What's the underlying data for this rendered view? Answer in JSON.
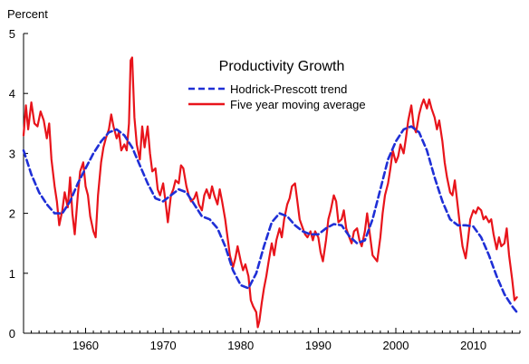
{
  "chart_data": {
    "type": "line",
    "title": "Productivity Growth",
    "ylabel": "Percent",
    "xlabel": "",
    "xlim": [
      1952,
      2016
    ],
    "ylim": [
      0,
      5
    ],
    "x_ticks": [
      1960,
      1970,
      1980,
      1990,
      2000,
      2010
    ],
    "y_ticks": [
      0,
      1,
      2,
      3,
      4,
      5
    ],
    "grid": false,
    "legend_position": "top-center",
    "series": [
      {
        "name": "Hodrick-Prescott trend",
        "color": "#1f2fd6",
        "dash": "dashed",
        "points": [
          [
            1952,
            3.05
          ],
          [
            1953,
            2.65
          ],
          [
            1954,
            2.35
          ],
          [
            1955,
            2.15
          ],
          [
            1956,
            2.0
          ],
          [
            1957,
            2.0
          ],
          [
            1958,
            2.2
          ],
          [
            1959,
            2.5
          ],
          [
            1960,
            2.75
          ],
          [
            1961,
            3.0
          ],
          [
            1962,
            3.2
          ],
          [
            1963,
            3.35
          ],
          [
            1964,
            3.4
          ],
          [
            1965,
            3.3
          ],
          [
            1966,
            3.1
          ],
          [
            1967,
            2.8
          ],
          [
            1968,
            2.5
          ],
          [
            1969,
            2.25
          ],
          [
            1970,
            2.2
          ],
          [
            1971,
            2.3
          ],
          [
            1972,
            2.4
          ],
          [
            1973,
            2.35
          ],
          [
            1974,
            2.15
          ],
          [
            1975,
            1.95
          ],
          [
            1976,
            1.9
          ],
          [
            1977,
            1.75
          ],
          [
            1978,
            1.45
          ],
          [
            1979,
            1.05
          ],
          [
            1980,
            0.8
          ],
          [
            1981,
            0.75
          ],
          [
            1982,
            1.0
          ],
          [
            1983,
            1.45
          ],
          [
            1984,
            1.85
          ],
          [
            1985,
            2.0
          ],
          [
            1986,
            1.95
          ],
          [
            1987,
            1.8
          ],
          [
            1988,
            1.7
          ],
          [
            1989,
            1.65
          ],
          [
            1990,
            1.65
          ],
          [
            1991,
            1.75
          ],
          [
            1992,
            1.82
          ],
          [
            1993,
            1.8
          ],
          [
            1994,
            1.62
          ],
          [
            1995,
            1.5
          ],
          [
            1996,
            1.55
          ],
          [
            1997,
            1.9
          ],
          [
            1998,
            2.4
          ],
          [
            1999,
            2.9
          ],
          [
            2000,
            3.2
          ],
          [
            2001,
            3.4
          ],
          [
            2002,
            3.45
          ],
          [
            2003,
            3.35
          ],
          [
            2004,
            3.05
          ],
          [
            2005,
            2.6
          ],
          [
            2006,
            2.2
          ],
          [
            2007,
            1.9
          ],
          [
            2008,
            1.8
          ],
          [
            2009,
            1.8
          ],
          [
            2010,
            1.78
          ],
          [
            2011,
            1.6
          ],
          [
            2012,
            1.3
          ],
          [
            2013,
            0.95
          ],
          [
            2014,
            0.65
          ],
          [
            2015,
            0.45
          ],
          [
            2015.6,
            0.35
          ]
        ]
      },
      {
        "name": "Five year moving average",
        "color": "#e8141b",
        "dash": "solid",
        "points": [
          [
            1952.0,
            3.3
          ],
          [
            1952.3,
            3.8
          ],
          [
            1952.6,
            3.4
          ],
          [
            1953.0,
            3.85
          ],
          [
            1953.4,
            3.5
          ],
          [
            1953.8,
            3.45
          ],
          [
            1954.2,
            3.7
          ],
          [
            1954.6,
            3.55
          ],
          [
            1955.0,
            3.25
          ],
          [
            1955.3,
            3.5
          ],
          [
            1955.6,
            2.9
          ],
          [
            1956.0,
            2.45
          ],
          [
            1956.3,
            2.2
          ],
          [
            1956.6,
            1.8
          ],
          [
            1957.0,
            2.05
          ],
          [
            1957.3,
            2.35
          ],
          [
            1957.7,
            2.1
          ],
          [
            1958.0,
            2.6
          ],
          [
            1958.3,
            2.0
          ],
          [
            1958.6,
            1.65
          ],
          [
            1959.0,
            2.3
          ],
          [
            1959.3,
            2.7
          ],
          [
            1959.7,
            2.85
          ],
          [
            1960.0,
            2.45
          ],
          [
            1960.3,
            2.3
          ],
          [
            1960.6,
            1.95
          ],
          [
            1961.0,
            1.7
          ],
          [
            1961.3,
            1.6
          ],
          [
            1961.6,
            2.3
          ],
          [
            1962.0,
            2.85
          ],
          [
            1962.3,
            3.1
          ],
          [
            1962.6,
            3.25
          ],
          [
            1963.0,
            3.4
          ],
          [
            1963.3,
            3.65
          ],
          [
            1963.6,
            3.45
          ],
          [
            1964.0,
            3.25
          ],
          [
            1964.3,
            3.35
          ],
          [
            1964.6,
            3.05
          ],
          [
            1965.0,
            3.15
          ],
          [
            1965.3,
            3.05
          ],
          [
            1965.6,
            3.5
          ],
          [
            1965.8,
            4.55
          ],
          [
            1966.0,
            4.6
          ],
          [
            1966.3,
            3.6
          ],
          [
            1966.6,
            3.15
          ],
          [
            1967.0,
            2.9
          ],
          [
            1967.3,
            3.45
          ],
          [
            1967.6,
            3.1
          ],
          [
            1968.0,
            3.45
          ],
          [
            1968.3,
            3.0
          ],
          [
            1968.6,
            2.7
          ],
          [
            1969.0,
            2.75
          ],
          [
            1969.3,
            2.4
          ],
          [
            1969.6,
            2.3
          ],
          [
            1970.0,
            2.5
          ],
          [
            1970.3,
            2.2
          ],
          [
            1970.6,
            1.85
          ],
          [
            1971.0,
            2.3
          ],
          [
            1971.3,
            2.4
          ],
          [
            1971.6,
            2.55
          ],
          [
            1972.0,
            2.5
          ],
          [
            1972.3,
            2.8
          ],
          [
            1972.6,
            2.75
          ],
          [
            1973.0,
            2.45
          ],
          [
            1973.3,
            2.3
          ],
          [
            1973.6,
            2.2
          ],
          [
            1974.0,
            2.25
          ],
          [
            1974.3,
            2.35
          ],
          [
            1974.6,
            2.15
          ],
          [
            1975.0,
            2.05
          ],
          [
            1975.3,
            2.3
          ],
          [
            1975.6,
            2.4
          ],
          [
            1976.0,
            2.25
          ],
          [
            1976.3,
            2.45
          ],
          [
            1976.6,
            2.3
          ],
          [
            1977.0,
            2.15
          ],
          [
            1977.3,
            2.4
          ],
          [
            1977.6,
            2.2
          ],
          [
            1978.0,
            1.9
          ],
          [
            1978.3,
            1.6
          ],
          [
            1978.6,
            1.3
          ],
          [
            1979.0,
            1.1
          ],
          [
            1979.3,
            1.25
          ],
          [
            1979.6,
            1.45
          ],
          [
            1980.0,
            1.2
          ],
          [
            1980.3,
            1.05
          ],
          [
            1980.6,
            1.15
          ],
          [
            1981.0,
            0.95
          ],
          [
            1981.3,
            0.55
          ],
          [
            1981.6,
            0.45
          ],
          [
            1982.0,
            0.35
          ],
          [
            1982.2,
            0.1
          ],
          [
            1982.4,
            0.2
          ],
          [
            1982.7,
            0.5
          ],
          [
            1983.0,
            0.75
          ],
          [
            1983.3,
            0.95
          ],
          [
            1983.6,
            1.2
          ],
          [
            1984.0,
            1.5
          ],
          [
            1984.3,
            1.3
          ],
          [
            1984.6,
            1.55
          ],
          [
            1985.0,
            1.75
          ],
          [
            1985.3,
            1.6
          ],
          [
            1985.6,
            1.9
          ],
          [
            1986.0,
            2.15
          ],
          [
            1986.3,
            2.25
          ],
          [
            1986.6,
            2.45
          ],
          [
            1987.0,
            2.5
          ],
          [
            1987.3,
            2.2
          ],
          [
            1987.6,
            1.9
          ],
          [
            1988.0,
            1.75
          ],
          [
            1988.3,
            1.65
          ],
          [
            1988.6,
            1.6
          ],
          [
            1989.0,
            1.7
          ],
          [
            1989.3,
            1.55
          ],
          [
            1989.6,
            1.7
          ],
          [
            1990.0,
            1.6
          ],
          [
            1990.3,
            1.35
          ],
          [
            1990.6,
            1.2
          ],
          [
            1991.0,
            1.55
          ],
          [
            1991.3,
            1.9
          ],
          [
            1991.6,
            2.05
          ],
          [
            1992.0,
            2.3
          ],
          [
            1992.3,
            2.2
          ],
          [
            1992.6,
            1.85
          ],
          [
            1993.0,
            1.9
          ],
          [
            1993.3,
            2.05
          ],
          [
            1993.6,
            1.75
          ],
          [
            1994.0,
            1.6
          ],
          [
            1994.3,
            1.5
          ],
          [
            1994.6,
            1.7
          ],
          [
            1995.0,
            1.75
          ],
          [
            1995.3,
            1.55
          ],
          [
            1995.6,
            1.45
          ],
          [
            1996.0,
            1.7
          ],
          [
            1996.3,
            2.0
          ],
          [
            1996.6,
            1.7
          ],
          [
            1997.0,
            1.3
          ],
          [
            1997.3,
            1.25
          ],
          [
            1997.6,
            1.2
          ],
          [
            1998.0,
            1.6
          ],
          [
            1998.3,
            2.0
          ],
          [
            1998.6,
            2.3
          ],
          [
            1999.0,
            2.5
          ],
          [
            1999.3,
            2.75
          ],
          [
            1999.6,
            3.05
          ],
          [
            2000.0,
            2.85
          ],
          [
            2000.3,
            2.95
          ],
          [
            2000.6,
            3.15
          ],
          [
            2001.0,
            3.0
          ],
          [
            2001.3,
            3.25
          ],
          [
            2001.6,
            3.55
          ],
          [
            2002.0,
            3.8
          ],
          [
            2002.3,
            3.45
          ],
          [
            2002.6,
            3.35
          ],
          [
            2003.0,
            3.65
          ],
          [
            2003.3,
            3.8
          ],
          [
            2003.6,
            3.9
          ],
          [
            2004.0,
            3.75
          ],
          [
            2004.3,
            3.9
          ],
          [
            2004.6,
            3.75
          ],
          [
            2005.0,
            3.6
          ],
          [
            2005.3,
            3.4
          ],
          [
            2005.6,
            3.55
          ],
          [
            2006.0,
            3.2
          ],
          [
            2006.3,
            2.85
          ],
          [
            2006.6,
            2.6
          ],
          [
            2007.0,
            2.35
          ],
          [
            2007.3,
            2.3
          ],
          [
            2007.6,
            2.55
          ],
          [
            2008.0,
            2.1
          ],
          [
            2008.3,
            1.75
          ],
          [
            2008.6,
            1.45
          ],
          [
            2009.0,
            1.25
          ],
          [
            2009.3,
            1.55
          ],
          [
            2009.6,
            1.9
          ],
          [
            2010.0,
            2.05
          ],
          [
            2010.3,
            2.0
          ],
          [
            2010.6,
            2.1
          ],
          [
            2011.0,
            2.05
          ],
          [
            2011.3,
            1.9
          ],
          [
            2011.6,
            1.95
          ],
          [
            2012.0,
            1.85
          ],
          [
            2012.3,
            1.9
          ],
          [
            2012.6,
            1.65
          ],
          [
            2013.0,
            1.4
          ],
          [
            2013.3,
            1.6
          ],
          [
            2013.6,
            1.45
          ],
          [
            2014.0,
            1.5
          ],
          [
            2014.3,
            1.75
          ],
          [
            2014.6,
            1.3
          ],
          [
            2015.0,
            0.9
          ],
          [
            2015.3,
            0.55
          ],
          [
            2015.6,
            0.6
          ]
        ]
      }
    ]
  }
}
